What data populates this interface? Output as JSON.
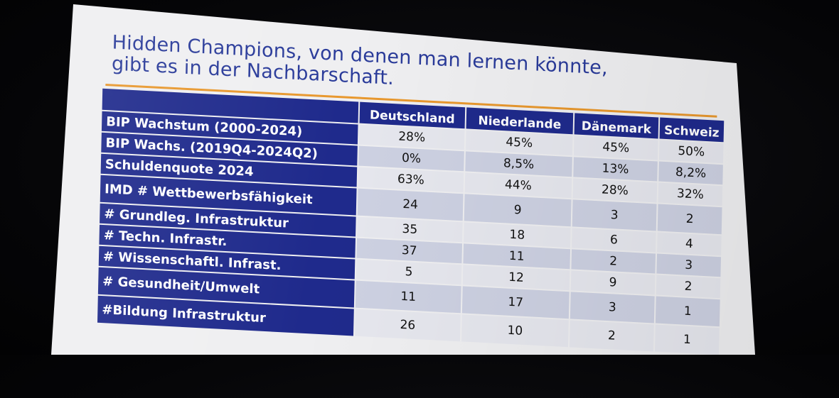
{
  "slide": {
    "title": "Hidden Champions, von denen man lernen könnte,\ngibt es in der Nachbarschaft."
  },
  "table": {
    "columns": [
      "Deutschland",
      "Niederlande",
      "Dänemark",
      "Schweiz"
    ],
    "rows": [
      {
        "label": "BIP Wachstum (2000-2024)",
        "values": [
          "28%",
          "45%",
          "45%",
          "50%"
        ]
      },
      {
        "label": "BIP Wachs. (2019Q4-2024Q2)",
        "values": [
          "0%",
          "8,5%",
          "13%",
          "8,2%"
        ]
      },
      {
        "label": "Schuldenquote 2024",
        "values": [
          "63%",
          "44%",
          "28%",
          "32%"
        ]
      },
      {
        "label": "IMD #  Wettbewerbsfähigkeit",
        "values": [
          "24",
          "9",
          "3",
          "2"
        ]
      },
      {
        "label": "# Grundleg. Infrastruktur",
        "values": [
          "35",
          "18",
          "6",
          "4"
        ]
      },
      {
        "label": "# Techn. Infrastr.",
        "values": [
          "37",
          "11",
          "2",
          "3"
        ]
      },
      {
        "label": "# Wissenschaftl. Infrast.",
        "values": [
          "5",
          "12",
          "9",
          "2"
        ]
      },
      {
        "label": "# Gesundheit/Umwelt",
        "values": [
          "11",
          "17",
          "3",
          "1"
        ]
      },
      {
        "label": "#Bildung Infrastruktur",
        "values": [
          "26",
          "10",
          "2",
          "1"
        ]
      }
    ]
  },
  "colors": {
    "header_blue": "#1f2a8c",
    "title_blue": "#2a3b9a",
    "accent_orange": "#e8982e",
    "cell_light": "#e6e7ee",
    "cell_mid": "#cdd1e2"
  }
}
